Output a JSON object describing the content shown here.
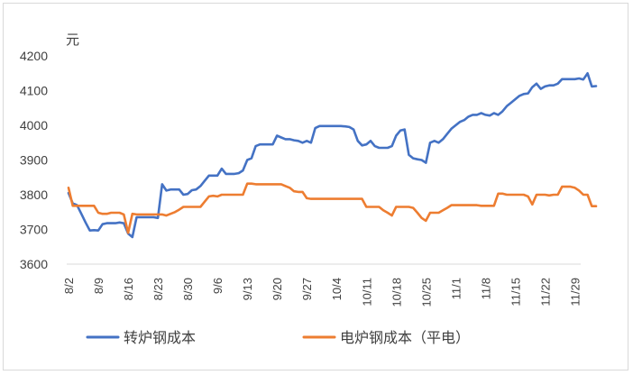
{
  "chart_data": {
    "type": "line",
    "title": "",
    "unit_label": "元",
    "xlabel": "",
    "ylabel": "元",
    "ylim": [
      3600,
      4200
    ],
    "yticks": [
      3600,
      3700,
      3800,
      3900,
      4000,
      4100,
      4200
    ],
    "grid": false,
    "legend_position": "bottom",
    "x_tick_labels": [
      "8/2",
      "8/9",
      "8/16",
      "8/23",
      "8/30",
      "9/6",
      "9/13",
      "9/20",
      "9/27",
      "10/4",
      "10/11",
      "10/18",
      "10/25",
      "11/1",
      "11/8",
      "11/15",
      "11/22",
      "11/29"
    ],
    "x_tick_days": [
      0,
      7,
      14,
      21,
      28,
      35,
      42,
      49,
      56,
      63,
      70,
      77,
      84,
      91,
      98,
      105,
      112,
      119
    ],
    "x_day_range": [
      0,
      119
    ],
    "series": [
      {
        "name": "转炉钢成本",
        "color": "#4472C4",
        "points": [
          [
            0,
            3805
          ],
          [
            1,
            3775
          ],
          [
            2,
            3770
          ],
          [
            3,
            3745
          ],
          [
            4,
            3720
          ],
          [
            5,
            3697
          ],
          [
            6,
            3698
          ],
          [
            7,
            3697
          ],
          [
            8,
            3715
          ],
          [
            9,
            3718
          ],
          [
            10,
            3718
          ],
          [
            11,
            3718
          ],
          [
            12,
            3720
          ],
          [
            13,
            3718
          ],
          [
            14,
            3688
          ],
          [
            15,
            3678
          ],
          [
            16,
            3735
          ],
          [
            17,
            3735
          ],
          [
            18,
            3735
          ],
          [
            19,
            3735
          ],
          [
            20,
            3735
          ],
          [
            21,
            3733
          ],
          [
            22,
            3830
          ],
          [
            23,
            3812
          ],
          [
            24,
            3815
          ],
          [
            25,
            3815
          ],
          [
            26,
            3815
          ],
          [
            27,
            3800
          ],
          [
            28,
            3802
          ],
          [
            29,
            3813
          ],
          [
            30,
            3815
          ],
          [
            31,
            3825
          ],
          [
            32,
            3840
          ],
          [
            33,
            3855
          ],
          [
            34,
            3855
          ],
          [
            35,
            3855
          ],
          [
            36,
            3875
          ],
          [
            37,
            3860
          ],
          [
            38,
            3860
          ],
          [
            39,
            3860
          ],
          [
            40,
            3862
          ],
          [
            41,
            3870
          ],
          [
            42,
            3900
          ],
          [
            43,
            3905
          ],
          [
            44,
            3940
          ],
          [
            45,
            3945
          ],
          [
            46,
            3945
          ],
          [
            47,
            3945
          ],
          [
            48,
            3945
          ],
          [
            49,
            3970
          ],
          [
            50,
            3965
          ],
          [
            51,
            3960
          ],
          [
            52,
            3960
          ],
          [
            53,
            3957
          ],
          [
            54,
            3955
          ],
          [
            55,
            3950
          ],
          [
            56,
            3955
          ],
          [
            57,
            3950
          ],
          [
            58,
            3992
          ],
          [
            59,
            3998
          ],
          [
            60,
            3998
          ],
          [
            61,
            3998
          ],
          [
            62,
            3998
          ],
          [
            63,
            3998
          ],
          [
            64,
            3998
          ],
          [
            65,
            3997
          ],
          [
            66,
            3995
          ],
          [
            67,
            3988
          ],
          [
            68,
            3955
          ],
          [
            69,
            3942
          ],
          [
            70,
            3945
          ],
          [
            71,
            3955
          ],
          [
            72,
            3940
          ],
          [
            73,
            3935
          ],
          [
            74,
            3935
          ],
          [
            75,
            3935
          ],
          [
            76,
            3940
          ],
          [
            77,
            3970
          ],
          [
            78,
            3985
          ],
          [
            79,
            3988
          ],
          [
            80,
            3915
          ],
          [
            81,
            3905
          ],
          [
            82,
            3902
          ],
          [
            83,
            3900
          ],
          [
            84,
            3892
          ],
          [
            85,
            3950
          ],
          [
            86,
            3955
          ],
          [
            87,
            3950
          ],
          [
            88,
            3960
          ],
          [
            89,
            3975
          ],
          [
            90,
            3990
          ],
          [
            91,
            4000
          ],
          [
            92,
            4010
          ],
          [
            93,
            4015
          ],
          [
            94,
            4025
          ],
          [
            95,
            4030
          ],
          [
            96,
            4030
          ],
          [
            97,
            4035
          ],
          [
            98,
            4030
          ],
          [
            99,
            4028
          ],
          [
            100,
            4035
          ],
          [
            101,
            4030
          ],
          [
            102,
            4040
          ],
          [
            103,
            4055
          ],
          [
            104,
            4065
          ],
          [
            105,
            4075
          ],
          [
            106,
            4085
          ],
          [
            107,
            4090
          ],
          [
            108,
            4092
          ],
          [
            109,
            4110
          ],
          [
            110,
            4120
          ],
          [
            111,
            4105
          ],
          [
            112,
            4112
          ],
          [
            113,
            4115
          ],
          [
            114,
            4115
          ],
          [
            115,
            4120
          ],
          [
            116,
            4133
          ],
          [
            117,
            4133
          ],
          [
            118,
            4133
          ],
          [
            119,
            4133
          ],
          [
            120,
            4135
          ],
          [
            121,
            4132
          ],
          [
            122,
            4150
          ],
          [
            123,
            4112
          ],
          [
            124,
            4113
          ]
        ]
      },
      {
        "name": "电炉钢成本（平电）",
        "color": "#ED7D31",
        "points": [
          [
            0,
            3820
          ],
          [
            1,
            3768
          ],
          [
            2,
            3768
          ],
          [
            3,
            3768
          ],
          [
            4,
            3768
          ],
          [
            5,
            3768
          ],
          [
            6,
            3768
          ],
          [
            7,
            3748
          ],
          [
            8,
            3745
          ],
          [
            9,
            3745
          ],
          [
            10,
            3748
          ],
          [
            11,
            3748
          ],
          [
            12,
            3748
          ],
          [
            13,
            3743
          ],
          [
            14,
            3690
          ],
          [
            15,
            3745
          ],
          [
            16,
            3743
          ],
          [
            17,
            3743
          ],
          [
            18,
            3743
          ],
          [
            19,
            3743
          ],
          [
            20,
            3743
          ],
          [
            21,
            3743
          ],
          [
            22,
            3743
          ],
          [
            23,
            3740
          ],
          [
            24,
            3745
          ],
          [
            25,
            3750
          ],
          [
            26,
            3757
          ],
          [
            27,
            3765
          ],
          [
            28,
            3765
          ],
          [
            29,
            3765
          ],
          [
            30,
            3765
          ],
          [
            31,
            3765
          ],
          [
            32,
            3780
          ],
          [
            33,
            3795
          ],
          [
            34,
            3797
          ],
          [
            35,
            3795
          ],
          [
            36,
            3800
          ],
          [
            37,
            3800
          ],
          [
            38,
            3800
          ],
          [
            39,
            3800
          ],
          [
            40,
            3800
          ],
          [
            41,
            3800
          ],
          [
            42,
            3832
          ],
          [
            43,
            3832
          ],
          [
            44,
            3830
          ],
          [
            45,
            3830
          ],
          [
            46,
            3830
          ],
          [
            47,
            3830
          ],
          [
            48,
            3830
          ],
          [
            49,
            3830
          ],
          [
            50,
            3830
          ],
          [
            51,
            3825
          ],
          [
            52,
            3820
          ],
          [
            53,
            3810
          ],
          [
            54,
            3808
          ],
          [
            55,
            3808
          ],
          [
            56,
            3790
          ],
          [
            57,
            3788
          ],
          [
            58,
            3788
          ],
          [
            59,
            3788
          ],
          [
            60,
            3788
          ],
          [
            61,
            3788
          ],
          [
            62,
            3788
          ],
          [
            63,
            3788
          ],
          [
            64,
            3788
          ],
          [
            65,
            3788
          ],
          [
            66,
            3788
          ],
          [
            67,
            3788
          ],
          [
            68,
            3788
          ],
          [
            69,
            3788
          ],
          [
            70,
            3765
          ],
          [
            71,
            3765
          ],
          [
            72,
            3765
          ],
          [
            73,
            3765
          ],
          [
            74,
            3755
          ],
          [
            75,
            3748
          ],
          [
            76,
            3740
          ],
          [
            77,
            3765
          ],
          [
            78,
            3765
          ],
          [
            79,
            3765
          ],
          [
            80,
            3765
          ],
          [
            81,
            3762
          ],
          [
            82,
            3748
          ],
          [
            83,
            3733
          ],
          [
            84,
            3725
          ],
          [
            85,
            3748
          ],
          [
            86,
            3748
          ],
          [
            87,
            3748
          ],
          [
            88,
            3755
          ],
          [
            89,
            3762
          ],
          [
            90,
            3770
          ],
          [
            91,
            3770
          ],
          [
            92,
            3770
          ],
          [
            93,
            3770
          ],
          [
            94,
            3770
          ],
          [
            95,
            3770
          ],
          [
            96,
            3770
          ],
          [
            97,
            3768
          ],
          [
            98,
            3768
          ],
          [
            99,
            3768
          ],
          [
            100,
            3768
          ],
          [
            101,
            3803
          ],
          [
            102,
            3803
          ],
          [
            103,
            3800
          ],
          [
            104,
            3800
          ],
          [
            105,
            3800
          ],
          [
            106,
            3800
          ],
          [
            107,
            3800
          ],
          [
            108,
            3795
          ],
          [
            109,
            3772
          ],
          [
            110,
            3800
          ],
          [
            111,
            3800
          ],
          [
            112,
            3800
          ],
          [
            113,
            3798
          ],
          [
            114,
            3800
          ],
          [
            115,
            3800
          ],
          [
            116,
            3823
          ],
          [
            117,
            3823
          ],
          [
            118,
            3823
          ],
          [
            119,
            3820
          ],
          [
            120,
            3812
          ],
          [
            121,
            3800
          ],
          [
            122,
            3800
          ],
          [
            123,
            3767
          ],
          [
            124,
            3767
          ]
        ]
      }
    ]
  }
}
